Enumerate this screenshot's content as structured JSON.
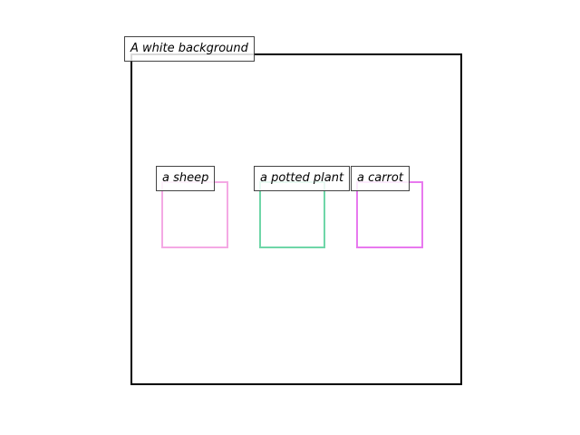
{
  "background_label": "A white background",
  "objects": [
    {
      "label": "a sheep",
      "color": "#f4a9e4"
    },
    {
      "label": "a potted plant",
      "color": "#6fd6a8"
    },
    {
      "label": "a carrot",
      "color": "#e879ef"
    }
  ]
}
